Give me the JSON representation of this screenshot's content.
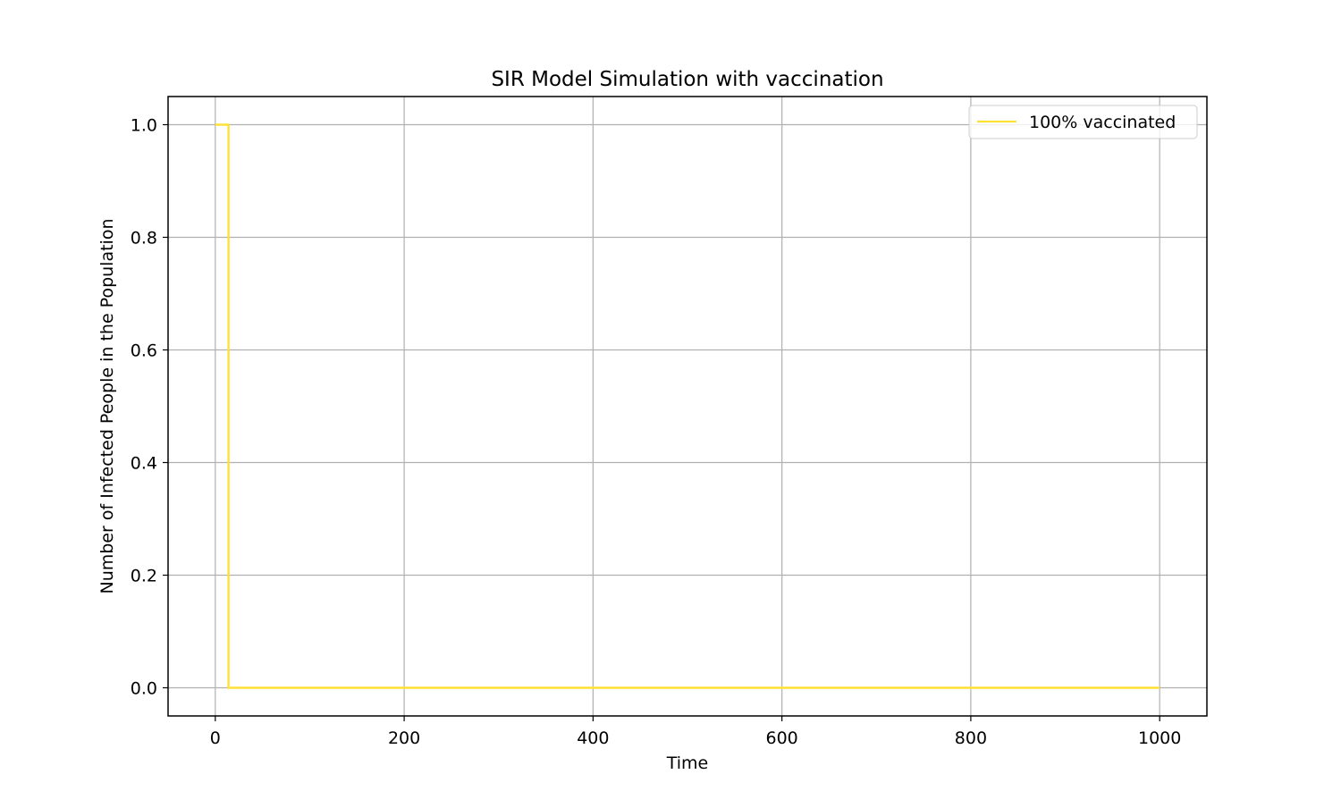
{
  "chart_data": {
    "type": "line",
    "title": "SIR Model Simulation with vaccination",
    "xlabel": "Time",
    "ylabel": "Number of Infected People in the Population",
    "xlim": [
      -50,
      1050
    ],
    "ylim": [
      -0.05,
      1.05
    ],
    "xticks": [
      0,
      200,
      400,
      600,
      800,
      1000
    ],
    "xtick_labels": [
      "0",
      "200",
      "400",
      "600",
      "800",
      "1000"
    ],
    "yticks": [
      0.0,
      0.2,
      0.4,
      0.6,
      0.8,
      1.0
    ],
    "ytick_labels": [
      "0.0",
      "0.2",
      "0.4",
      "0.6",
      "0.8",
      "1.0"
    ],
    "grid": true,
    "legend": {
      "placement": "upper right",
      "entries": [
        "100% vaccinated"
      ]
    },
    "series": [
      {
        "name": "100% vaccinated",
        "color": "#ffe135",
        "step": true,
        "x": [
          0,
          13,
          14,
          1000
        ],
        "y": [
          1.0,
          1.0,
          0.0,
          0.0
        ]
      }
    ]
  }
}
